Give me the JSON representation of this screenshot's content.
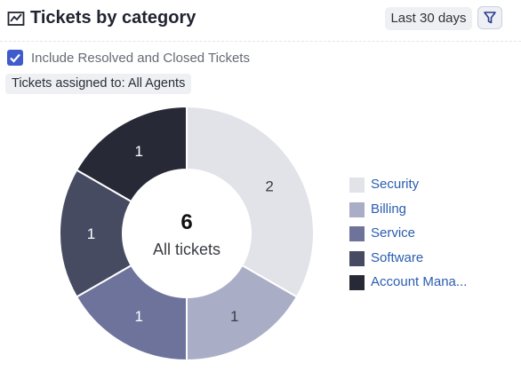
{
  "header": {
    "title": "Tickets by category",
    "range_label": "Last 30 days"
  },
  "filters": {
    "include_closed_label": "Include Resolved and Closed Tickets",
    "include_closed_checked": true,
    "assigned_label": "Tickets assigned to: All Agents"
  },
  "chart_data": {
    "type": "pie",
    "donut": true,
    "center_value": "6",
    "center_label": "All tickets",
    "legend_position": "right",
    "categories": [
      "Security",
      "Billing",
      "Service",
      "Software",
      "Account Mana..."
    ],
    "values": [
      2,
      1,
      1,
      1,
      1
    ],
    "colors": [
      "#e2e3e8",
      "#a9adc6",
      "#6e739c",
      "#474b62",
      "#272a36"
    ],
    "label_colors": [
      "#3a3c44",
      "#3a3c44",
      "#ffffff",
      "#ffffff",
      "#ffffff"
    ]
  }
}
